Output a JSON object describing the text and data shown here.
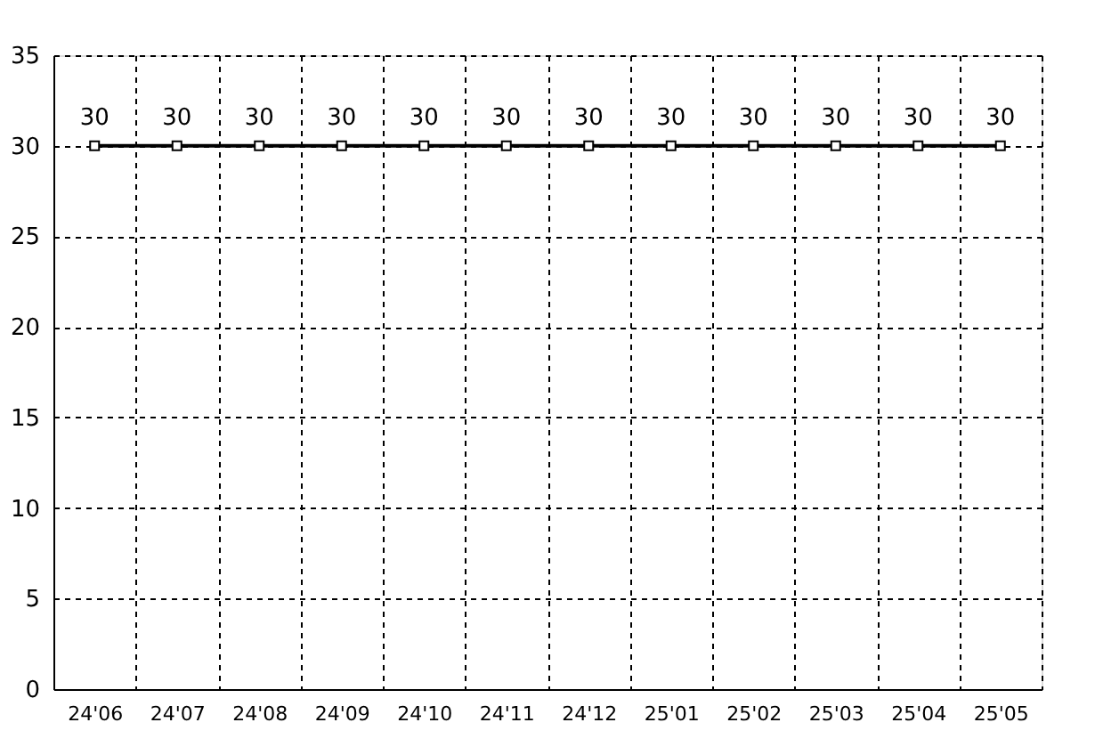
{
  "chart_data": {
    "type": "line",
    "categories": [
      "24'06",
      "24'07",
      "24'08",
      "24'09",
      "24'10",
      "24'11",
      "24'12",
      "25'01",
      "25'02",
      "25'03",
      "25'04",
      "25'05"
    ],
    "series": [
      {
        "color": "#000000",
        "values": [
          30,
          30,
          30,
          30,
          30,
          30,
          30,
          30,
          30,
          30,
          30,
          30
        ]
      }
    ],
    "ylim": [
      0,
      35
    ],
    "yticks": [
      0,
      5,
      10,
      15,
      20,
      25,
      30,
      35
    ],
    "grid": true,
    "marker": "square",
    "line_style": "solid",
    "data_labels": true,
    "legend": false
  }
}
